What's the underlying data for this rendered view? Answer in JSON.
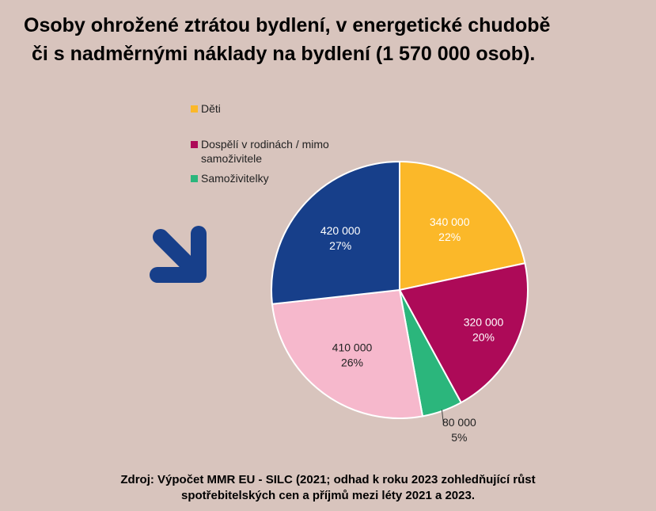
{
  "title": {
    "line1": "Osoby ohrožené ztrátou bydlení, v energetické chudobě",
    "line2": "či s nadměrnými náklady na bydlení (1 570 000 osob)."
  },
  "legend": [
    {
      "label": "Děti",
      "color": "#fbb829"
    },
    {
      "label": "Dospělí v rodinách / mimo samoživitele",
      "color": "#ad0a58"
    },
    {
      "label": "Samoživitelky",
      "color": "#2bb67c"
    }
  ],
  "arrow_icon": "arrow-down-right-icon",
  "chart_data": {
    "type": "pie",
    "total": 1570000,
    "slices": [
      {
        "value": 340000,
        "value_label": "340 000",
        "percent_label": "22%",
        "color": "#fbb829"
      },
      {
        "value": 320000,
        "value_label": "320 000",
        "percent_label": "20%",
        "color": "#ad0a58"
      },
      {
        "value": 80000,
        "value_label": "80 000",
        "percent_label": "5%",
        "color": "#2bb67c"
      },
      {
        "value": 410000,
        "value_label": "410 000",
        "percent_label": "26%",
        "color": "#f6b8cc"
      },
      {
        "value": 420000,
        "value_label": "420 000",
        "percent_label": "27%",
        "color": "#173f8a"
      }
    ]
  },
  "source": {
    "line1": "Zdroj: Výpočet MMR EU  - SILC (2021; odhad k roku 2023 zohledňující růst",
    "line2": "spotřebitelských cen a příjmů mezi léty 2021 a 2023."
  }
}
